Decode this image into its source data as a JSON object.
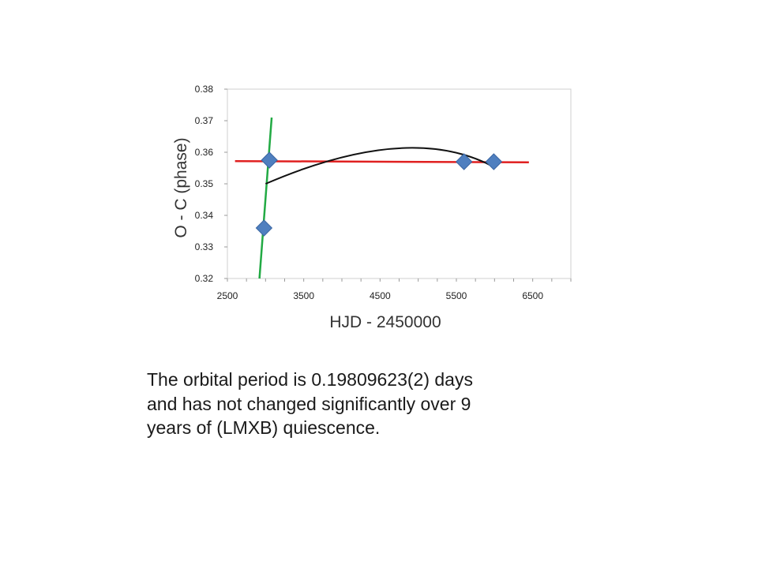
{
  "chart_data": {
    "type": "scatter",
    "xlabel": "HJD - 2450000",
    "ylabel": "O - C (phase)",
    "xlim": [
      2500,
      7000
    ],
    "ylim": [
      0.32,
      0.38
    ],
    "x_ticks": [
      "2500",
      "3500",
      "4500",
      "5500",
      "6500"
    ],
    "x_tick_values": [
      2500,
      3500,
      4500,
      5500,
      6500
    ],
    "y_ticks": [
      "0.32",
      "0.33",
      "0.34",
      "0.35",
      "0.36",
      "0.37",
      "0.38"
    ],
    "y_tick_values": [
      0.32,
      0.33,
      0.34,
      0.35,
      0.36,
      0.37,
      0.38
    ],
    "grid": false,
    "points": [
      {
        "x": 2980,
        "y": 0.336
      },
      {
        "x": 3050,
        "y": 0.3575
      },
      {
        "x": 5600,
        "y": 0.357
      },
      {
        "x": 5990,
        "y": 0.357
      }
    ],
    "fits": [
      {
        "kind": "linear",
        "color": "#e02020",
        "points": [
          [
            2600,
            0.3572
          ],
          [
            6450,
            0.3568
          ]
        ]
      },
      {
        "kind": "linear",
        "color": "#22aa44",
        "points": [
          [
            2920,
            0.32
          ],
          [
            3080,
            0.371
          ]
        ]
      },
      {
        "kind": "quadratic",
        "color": "#111111",
        "points": [
          [
            3000,
            0.35
          ],
          [
            4700,
            0.3612
          ],
          [
            6000,
            0.3552
          ]
        ]
      }
    ],
    "marker_color": "#4f7fbf"
  },
  "caption": {
    "line1": "The orbital period is 0.19809623(2) days",
    "line2": "and has not changed significantly over 9",
    "line3": "years of (LMXB) quiescence."
  }
}
